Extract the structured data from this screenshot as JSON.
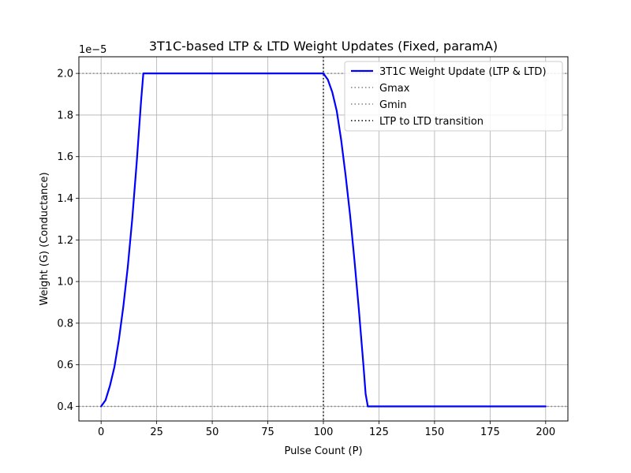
{
  "chart_data": {
    "type": "line",
    "title": "3T1C-based LTP & LTD Weight Updates (Fixed, paramA)",
    "xlabel": "Pulse Count (P)",
    "ylabel": "Weight (G) (Conductance)",
    "y_offset_label": "1e−5",
    "xlim": [
      -10,
      210
    ],
    "ylim": [
      0.33,
      2.08
    ],
    "xticks": [
      0,
      25,
      50,
      75,
      100,
      125,
      150,
      175,
      200
    ],
    "yticks": [
      0.4,
      0.6,
      0.8,
      1.0,
      1.2,
      1.4,
      1.6,
      1.8,
      2.0
    ],
    "ytick_labels": [
      "0.4",
      "0.6",
      "0.8",
      "1.0",
      "1.2",
      "1.4",
      "1.6",
      "1.8",
      "2.0"
    ],
    "grid": true,
    "legend_position": "top-right",
    "series": [
      {
        "name": "3T1C Weight Update (LTP & LTD)",
        "color": "#0000ff",
        "style": "solid",
        "x": [
          0,
          2,
          4,
          6,
          8,
          10,
          12,
          14,
          16,
          18,
          19,
          20,
          40,
          60,
          80,
          100,
          102,
          104,
          106,
          108,
          110,
          112,
          114,
          116,
          118,
          119,
          120,
          140,
          160,
          180,
          200
        ],
        "y": [
          0.4,
          0.43,
          0.5,
          0.59,
          0.72,
          0.88,
          1.07,
          1.3,
          1.57,
          1.87,
          2.0,
          2.0,
          2.0,
          2.0,
          2.0,
          2.0,
          1.97,
          1.91,
          1.82,
          1.68,
          1.51,
          1.32,
          1.1,
          0.86,
          0.6,
          0.46,
          0.4,
          0.4,
          0.4,
          0.4,
          0.4
        ]
      }
    ],
    "reference_lines": [
      {
        "name": "Gmax",
        "orientation": "horizontal",
        "value": 2.0,
        "color": "#808080",
        "style": "dotted"
      },
      {
        "name": "Gmin",
        "orientation": "horizontal",
        "value": 0.4,
        "color": "#808080",
        "style": "dotted"
      },
      {
        "name": "LTP to LTD transition",
        "orientation": "vertical",
        "value": 100,
        "color": "#000000",
        "style": "dotted"
      }
    ]
  }
}
